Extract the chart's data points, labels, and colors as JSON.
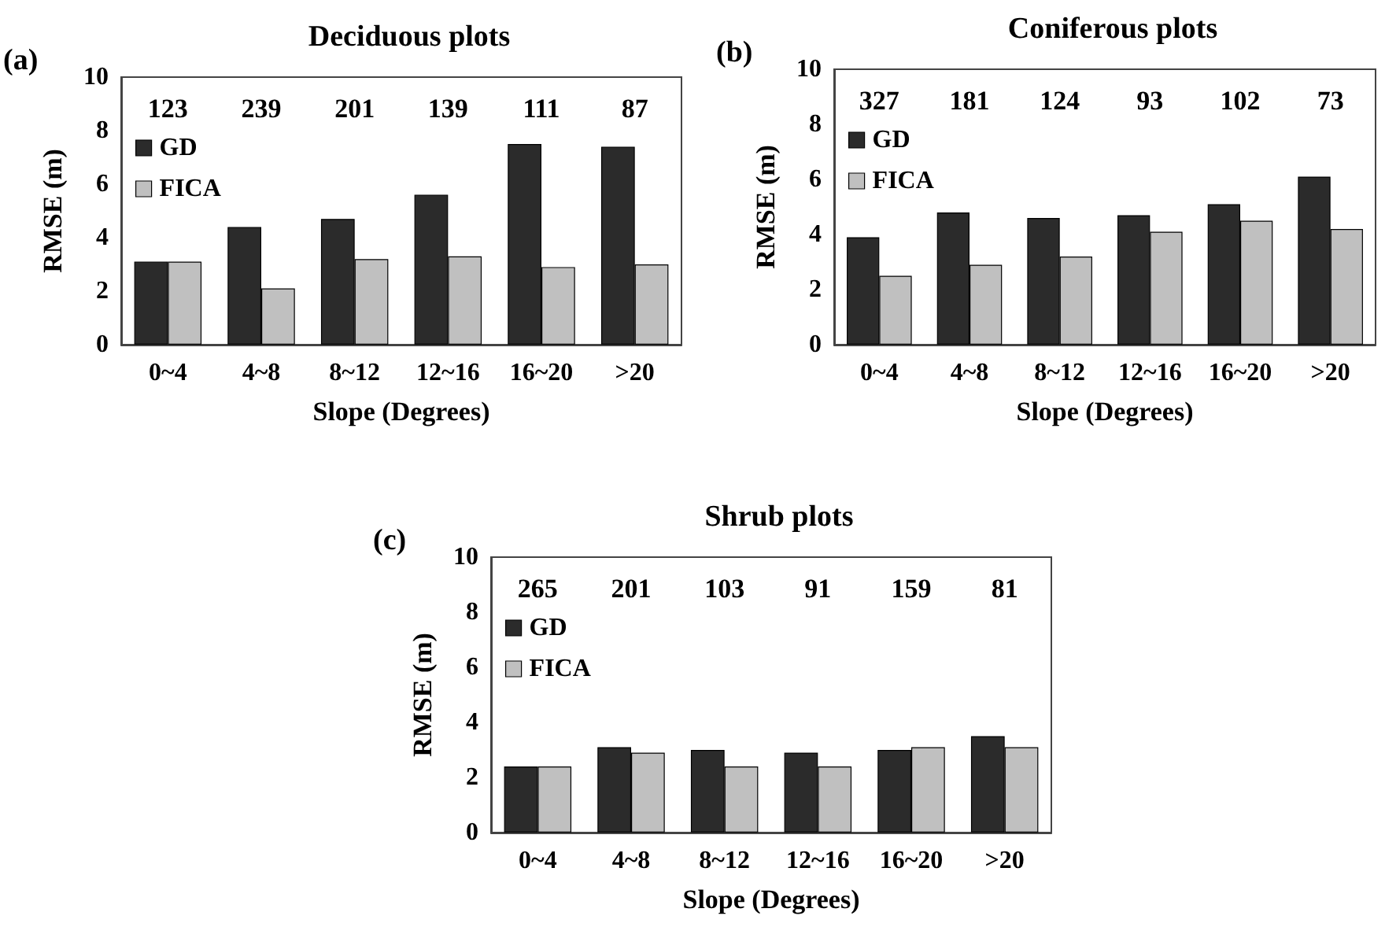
{
  "chart_data": [
    {
      "type": "bar",
      "title": "Deciduous plots",
      "xlabel": "Slope (Degrees)",
      "ylabel": "RMSE (m)",
      "categories": [
        "0~4",
        "4~8",
        "8~12",
        "12~16",
        "16~20",
        ">20"
      ],
      "series": [
        {
          "name": "GD",
          "color": "#2b2b2b",
          "values": [
            3.1,
            4.4,
            4.7,
            5.6,
            7.5,
            7.4
          ]
        },
        {
          "name": "FICA",
          "color": "#c0c0c0",
          "values": [
            3.1,
            2.1,
            3.2,
            3.3,
            2.9,
            3.0
          ]
        }
      ],
      "ylim": [
        0,
        10
      ],
      "yticks": [
        0,
        2,
        4,
        6,
        8,
        10
      ],
      "legend": "top left",
      "annotations": [
        "(a)",
        "123",
        "239",
        "201",
        "139",
        "111",
        "87"
      ]
    },
    {
      "type": "bar",
      "title": "Coniferous plots",
      "xlabel": "Slope (Degrees)",
      "ylabel": "RMSE (m)",
      "categories": [
        "0~4",
        "4~8",
        "8~12",
        "12~16",
        "16~20",
        ">20"
      ],
      "series": [
        {
          "name": "GD",
          "color": "#2b2b2b",
          "values": [
            3.9,
            4.8,
            4.6,
            4.7,
            5.1,
            6.1
          ]
        },
        {
          "name": "FICA",
          "color": "#c0c0c0",
          "values": [
            2.5,
            2.9,
            3.2,
            4.1,
            4.5,
            4.2
          ]
        }
      ],
      "ylim": [
        0,
        10
      ],
      "yticks": [
        0,
        2,
        4,
        6,
        8,
        10
      ],
      "legend": "top left",
      "annotations": [
        "(b)",
        "327",
        "181",
        "124",
        "93",
        "102",
        "73"
      ]
    },
    {
      "type": "bar",
      "title": "Shrub plots",
      "xlabel": "Slope (Degrees)",
      "ylabel": "RMSE (m)",
      "categories": [
        "0~4",
        "4~8",
        "8~12",
        "12~16",
        "16~20",
        ">20"
      ],
      "series": [
        {
          "name": "GD",
          "color": "#2b2b2b",
          "values": [
            2.4,
            3.1,
            3.0,
            2.9,
            3.0,
            3.5
          ]
        },
        {
          "name": "FICA",
          "color": "#c0c0c0",
          "values": [
            2.4,
            2.9,
            2.4,
            2.4,
            3.1,
            3.1
          ]
        }
      ],
      "ylim": [
        0,
        10
      ],
      "yticks": [
        0,
        2,
        4,
        6,
        8,
        10
      ],
      "legend": "top left",
      "annotations": [
        "(c)",
        "265",
        "201",
        "103",
        "91",
        "159",
        "81"
      ]
    }
  ]
}
